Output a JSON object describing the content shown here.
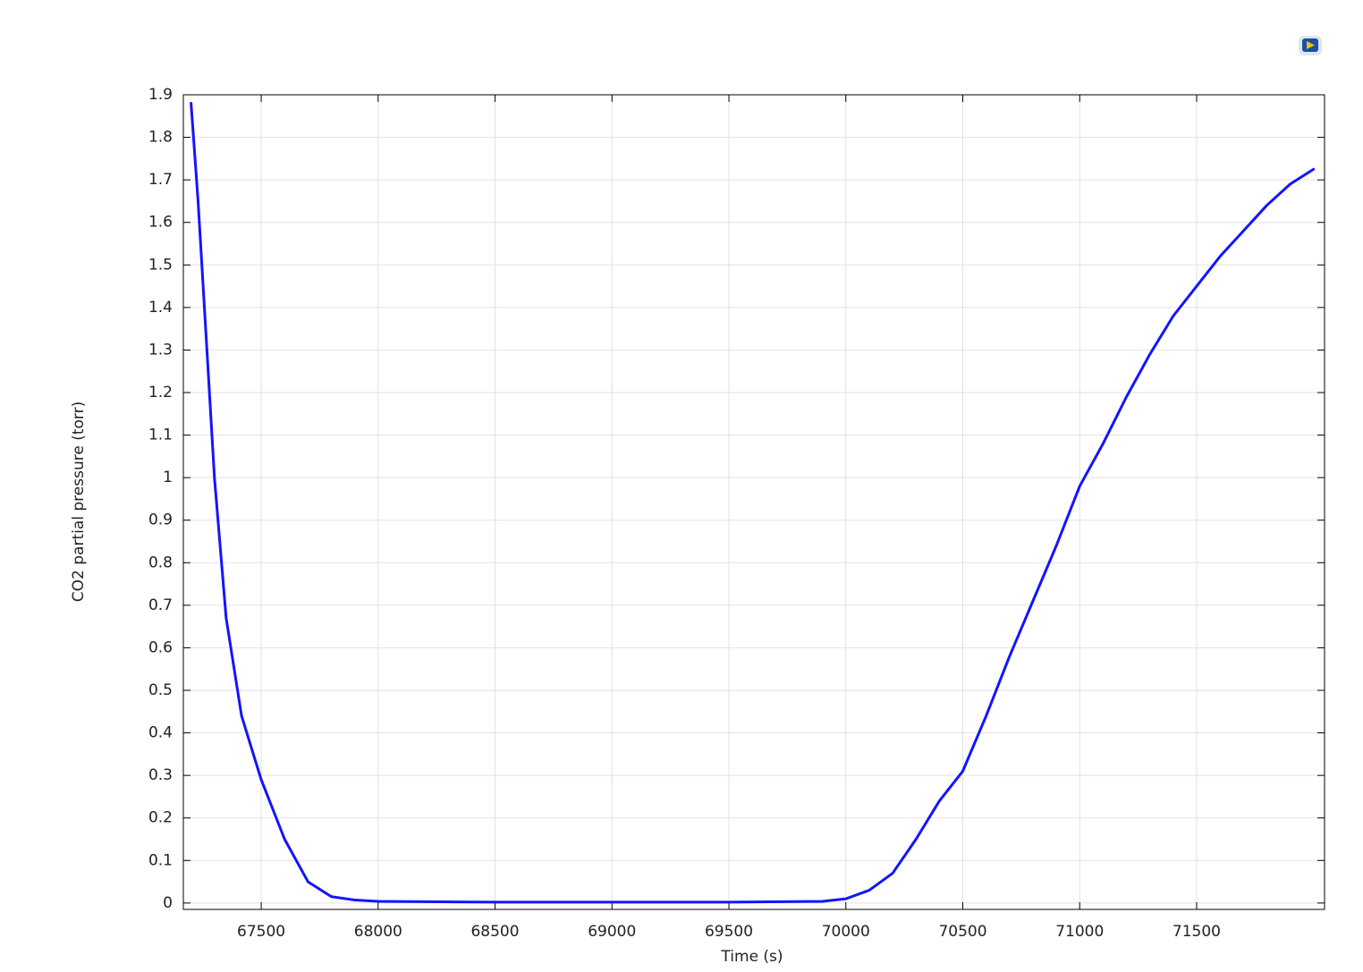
{
  "chart_data": {
    "type": "line",
    "xlabel": "Time (s)",
    "ylabel": "CO2 partial pressure (torr)",
    "x": [
      67200,
      67230,
      67270,
      67300,
      67350,
      67416,
      67500,
      67600,
      67700,
      67800,
      67900,
      68000,
      68500,
      69000,
      69500,
      69900,
      70000,
      70100,
      70200,
      70300,
      70400,
      70500,
      70600,
      70700,
      70800,
      70900,
      71000,
      71100,
      71200,
      71300,
      71400,
      71500,
      71600,
      71700,
      71800,
      71900,
      72000
    ],
    "series": [
      {
        "name": "CO2",
        "color": "#1414ff",
        "values": [
          1.88,
          1.65,
          1.28,
          1.0,
          0.67,
          0.44,
          0.29,
          0.15,
          0.05,
          0.015,
          0.007,
          0.004,
          0.002,
          0.002,
          0.002,
          0.004,
          0.01,
          0.03,
          0.07,
          0.15,
          0.24,
          0.31,
          0.44,
          0.58,
          0.71,
          0.84,
          0.98,
          1.08,
          1.19,
          1.29,
          1.38,
          1.45,
          1.52,
          1.58,
          1.64,
          1.69,
          1.725
        ]
      }
    ],
    "xlim": [
      67167,
      72047
    ],
    "ylim": [
      -0.015,
      1.9
    ],
    "xticks": [
      67500,
      68000,
      68500,
      69000,
      69500,
      70000,
      70500,
      71000,
      71500
    ],
    "yticks": [
      0,
      0.1,
      0.2,
      0.3,
      0.4,
      0.5,
      0.6,
      0.7,
      0.8,
      0.9,
      1,
      1.1,
      1.2,
      1.3,
      1.4,
      1.5,
      1.6,
      1.7,
      1.8,
      1.9
    ],
    "grid": true
  }
}
